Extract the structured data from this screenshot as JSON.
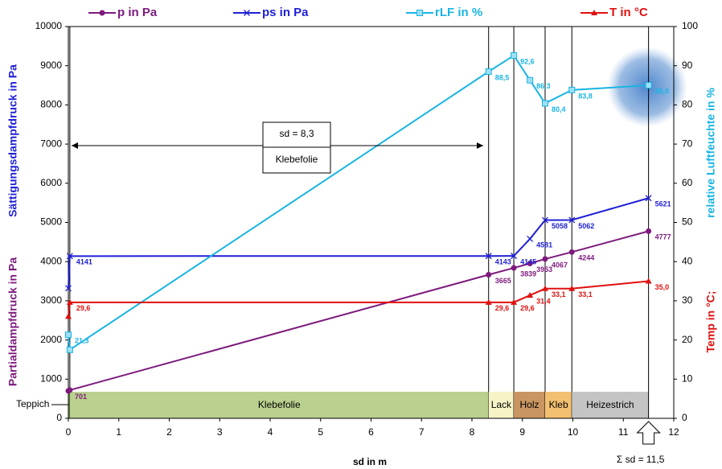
{
  "chart_data": {
    "type": "line",
    "x_label": "sd in m",
    "y_labels": [
      {
        "text": "Sättigungsdampfdruck in Pa",
        "color": "#1f1fd6"
      },
      {
        "text": "Partialdampfdruck in Pa",
        "color": "#7d1a7d"
      }
    ],
    "y2_labels": [
      {
        "text": "relative Luftfeuchte in %",
        "color": "#19b4e3"
      },
      {
        "text": "Temp in °C;",
        "color": "#e01010"
      }
    ],
    "xlim": [
      0,
      12
    ],
    "xticks": [
      0,
      1,
      2,
      3,
      4,
      5,
      6,
      7,
      8,
      9,
      10,
      11,
      12
    ],
    "ylim": [
      0,
      10000
    ],
    "yticks": [
      0,
      1000,
      2000,
      3000,
      4000,
      5000,
      6000,
      7000,
      8000,
      9000,
      10000
    ],
    "y2lim": [
      0,
      100
    ],
    "y2ticks": [
      0,
      10,
      20,
      30,
      40,
      50,
      60,
      70,
      80,
      90,
      100
    ],
    "x": [
      0,
      0.03,
      8.33,
      8.83,
      9.15,
      9.45,
      9.98,
      11.5
    ],
    "series": [
      {
        "name": "p in Pa",
        "color": "#7d1a7d",
        "marker": "circle",
        "values": [
          701,
          720,
          3665,
          3839,
          3953,
          4067,
          4244,
          4777
        ],
        "value_labels": [
          "701",
          null,
          "3665",
          "3839",
          "3953",
          "4067",
          "4244",
          "4777"
        ]
      },
      {
        "name": "ps in Pa",
        "color": "#1f1fd6",
        "marker": "x",
        "values": [
          3320,
          4141,
          4143,
          4145,
          4581,
          5058,
          5062,
          5621
        ],
        "value_labels": [
          null,
          "4141",
          "4143",
          "4145",
          "4581",
          "5058",
          "5062",
          "5621"
        ]
      },
      {
        "name": "rLF in %",
        "color": "#19b4e3",
        "marker": "square",
        "axis": "y2",
        "values": [
          21.3,
          17.5,
          88.5,
          92.6,
          86.3,
          80.4,
          83.8,
          85.0
        ],
        "value_labels": [
          "21,3",
          null,
          "88,5",
          "92,6",
          "86,3",
          "80,4",
          "83,8",
          "85,0"
        ]
      },
      {
        "name": "T in °C",
        "color": "#e01010",
        "marker": "triangle",
        "axis": "y2",
        "values": [
          26,
          29.6,
          29.6,
          29.6,
          31.4,
          33.1,
          33.1,
          35.0
        ],
        "value_labels": [
          null,
          "29,6",
          "29,6",
          "29,6",
          "31,4",
          "33,1",
          "33,1",
          "35,0"
        ]
      }
    ],
    "layers": [
      {
        "label": "Teppich",
        "start": 0,
        "end": 0.03,
        "color": "#9fbf6a"
      },
      {
        "label": "Klebefolie",
        "start": 0.03,
        "end": 8.33,
        "color": "#b9d08e"
      },
      {
        "label": "Lack",
        "start": 8.33,
        "end": 8.83,
        "color": "#f6f3c6"
      },
      {
        "label": "Holz",
        "start": 8.83,
        "end": 9.45,
        "color": "#c99562"
      },
      {
        "label": "Kleb",
        "start": 9.45,
        "end": 9.98,
        "color": "#f2c070"
      },
      {
        "label": "Heizestrich",
        "start": 9.98,
        "end": 11.5,
        "color": "#c4c4c4"
      }
    ],
    "annotation": [
      "sd = 8,3",
      "Klebefolie"
    ],
    "sum_label": "Σ sd = 11,5"
  }
}
